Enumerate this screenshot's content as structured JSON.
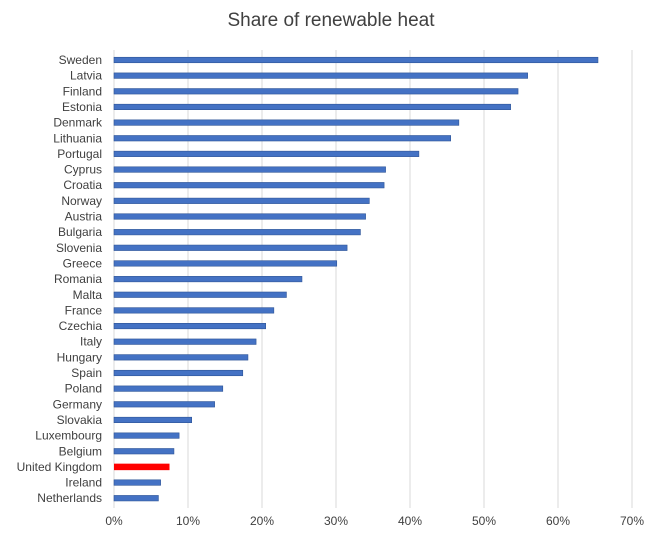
{
  "chart_data": {
    "type": "bar",
    "orientation": "horizontal",
    "title": "Share of renewable heat",
    "xlabel": "",
    "ylabel": "",
    "xlim": [
      0,
      0.7
    ],
    "x_ticks": [
      0,
      0.1,
      0.2,
      0.3,
      0.4,
      0.5,
      0.6,
      0.7
    ],
    "x_tick_labels": [
      "0%",
      "10%",
      "20%",
      "30%",
      "40%",
      "50%",
      "60%",
      "70%"
    ],
    "grid": "vertical",
    "legend": "none",
    "bar_color": "#4472C4",
    "highlight_color": "#FF0000",
    "highlight_category": "United Kingdom",
    "categories": [
      "Sweden",
      "Latvia",
      "Finland",
      "Estonia",
      "Denmark",
      "Lithuania",
      "Portugal",
      "Cyprus",
      "Croatia",
      "Norway",
      "Austria",
      "Bulgaria",
      "Slovenia",
      "Greece",
      "Romania",
      "Malta",
      "France",
      "Czechia",
      "Italy",
      "Hungary",
      "Spain",
      "Poland",
      "Germany",
      "Slovakia",
      "Luxembourg",
      "Belgium",
      "United Kingdom",
      "Ireland",
      "Netherlands"
    ],
    "values": [
      0.654,
      0.559,
      0.546,
      0.536,
      0.466,
      0.455,
      0.412,
      0.367,
      0.365,
      0.345,
      0.34,
      0.333,
      0.315,
      0.301,
      0.254,
      0.233,
      0.216,
      0.205,
      0.192,
      0.181,
      0.174,
      0.147,
      0.136,
      0.105,
      0.088,
      0.081,
      0.075,
      0.063,
      0.06
    ]
  }
}
